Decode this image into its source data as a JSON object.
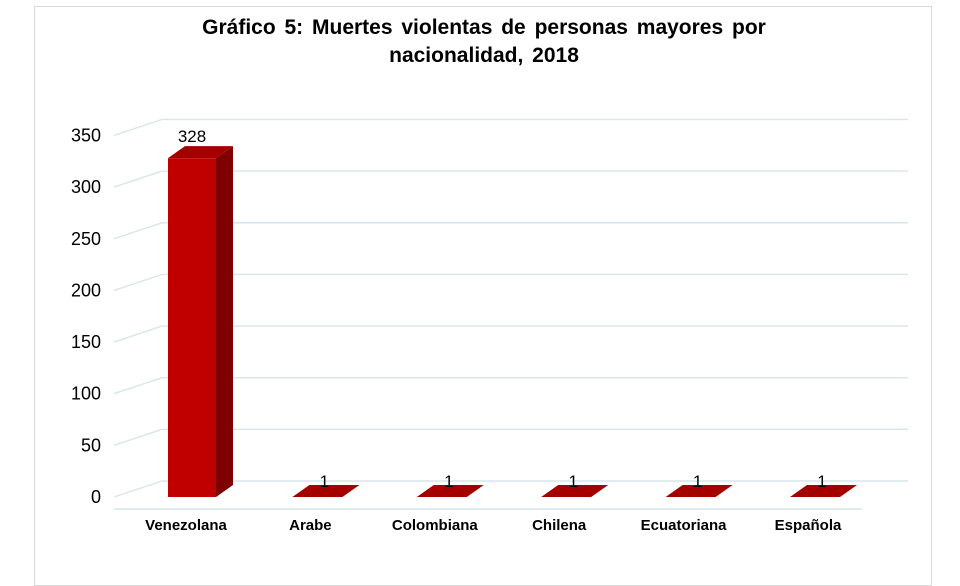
{
  "chart_data": {
    "type": "bar",
    "title_line1": "Gráfico 5: Muertes violentas de personas mayores por",
    "title_line2": "nacionalidad, 2018",
    "categories": [
      "Venezolana",
      "Arabe",
      "Colombiana",
      "Chilena",
      "Ecuatoriana",
      "Española"
    ],
    "values": [
      328,
      1,
      1,
      1,
      1,
      1
    ],
    "data_labels": [
      "328",
      "1",
      "1",
      "1",
      "1",
      "1"
    ],
    "yticks": [
      "0",
      "50",
      "100",
      "150",
      "200",
      "250",
      "300",
      "350"
    ],
    "ylim": [
      0,
      350
    ],
    "xlabel": "",
    "ylabel": "",
    "grid": true,
    "style": "3d-column",
    "colors": {
      "bar_front": "#c00000",
      "bar_side": "#7f0000",
      "bar_top": "#a50000",
      "grid": "#d6e6ec"
    }
  }
}
